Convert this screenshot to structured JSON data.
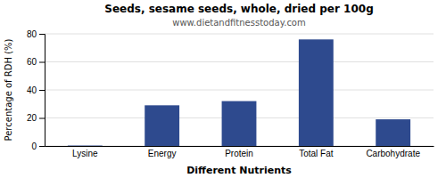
{
  "chart_data": {
    "type": "bar",
    "title": "Seeds, sesame seeds, whole, dried per 100g",
    "subtitle": "www.dietandfitnesstoday.com",
    "xlabel": "Different Nutrients",
    "ylabel": "Percentage of RDH (%)",
    "categories": [
      "Lysine",
      "Energy",
      "Protein",
      "Total Fat",
      "Carbohydrate"
    ],
    "values": [
      0.3,
      29,
      32,
      76,
      19
    ],
    "color": "#2e4a8e",
    "ylim": [
      0,
      80
    ],
    "yticks": [
      0,
      20,
      40,
      60,
      80
    ],
    "grid": true
  }
}
